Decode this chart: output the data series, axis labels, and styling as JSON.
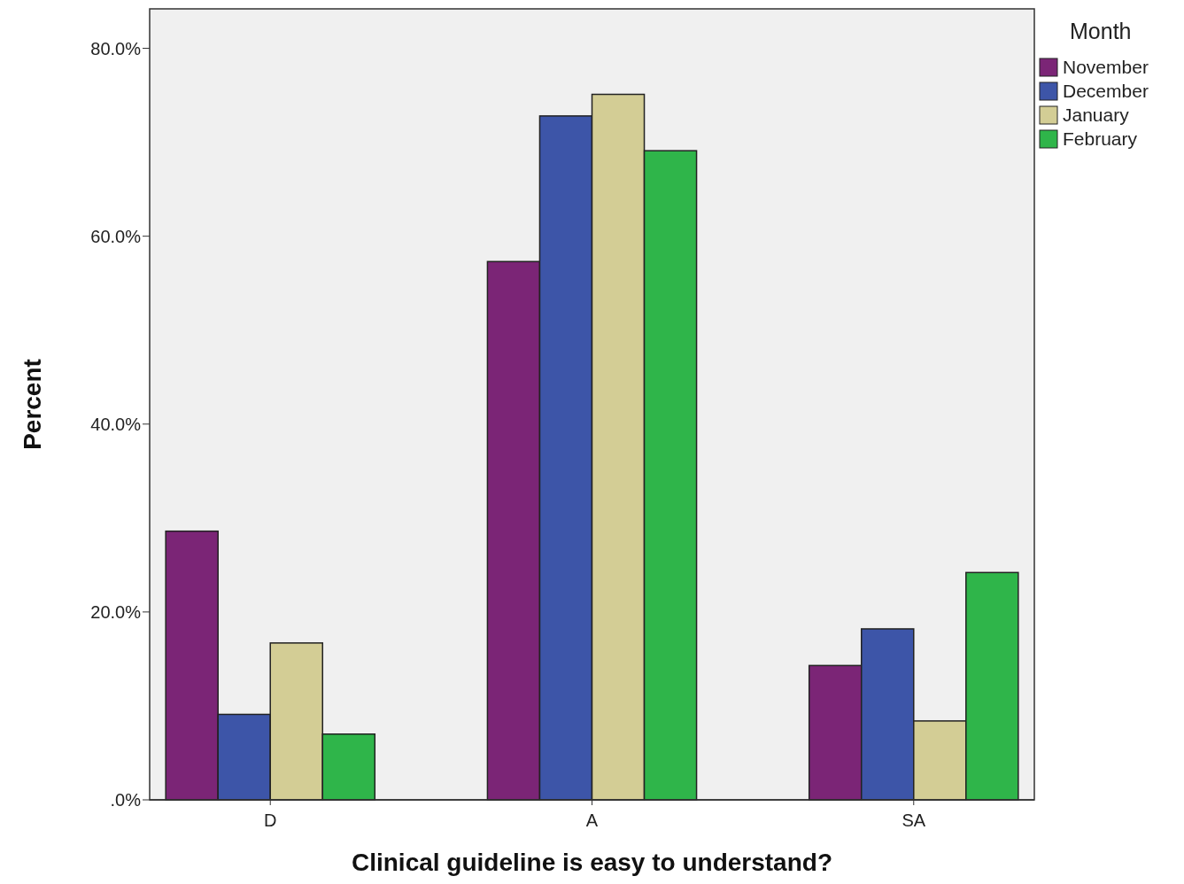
{
  "chart_data": {
    "type": "bar",
    "xlabel": "Clinical guideline is easy to understand?",
    "ylabel": "Percent",
    "legend_title": "Month",
    "legend": "top right",
    "grid": false,
    "categories": [
      "D",
      "A",
      "SA"
    ],
    "series": [
      {
        "name": "November",
        "color": "#7b2576",
        "values": [
          28.6,
          57.3,
          14.3
        ]
      },
      {
        "name": "December",
        "color": "#3d55a8",
        "values": [
          9.1,
          72.8,
          18.2
        ]
      },
      {
        "name": "January",
        "color": "#d3cd95",
        "values": [
          16.7,
          75.1,
          8.4
        ]
      },
      {
        "name": "February",
        "color": "#2fb54a",
        "values": [
          7.0,
          69.1,
          24.2
        ]
      }
    ],
    "ylim": [
      0,
      84.2
    ],
    "yticks": [
      {
        "value": 0,
        "label": ".0%"
      },
      {
        "value": 20,
        "label": "20.0%"
      },
      {
        "value": 40,
        "label": "40.0%"
      },
      {
        "value": 60,
        "label": "60.0%"
      },
      {
        "value": 80,
        "label": "80.0%"
      }
    ]
  }
}
